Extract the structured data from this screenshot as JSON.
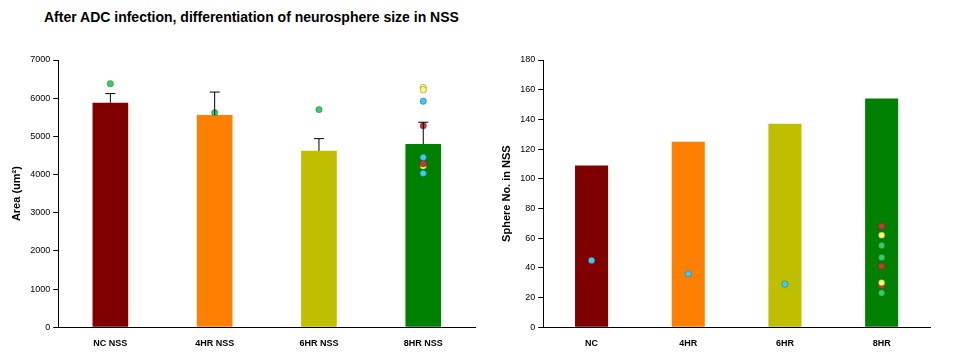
{
  "title": "After ADC infection, differentiation of neurosphere size in NSS",
  "chart_data": [
    {
      "type": "bar",
      "y_label": "Area (um²)",
      "categories": [
        "NC NSS",
        "4HR NSS",
        "6HR NSS",
        "8HR NSS"
      ],
      "values": [
        5880,
        5560,
        4620,
        4800
      ],
      "colors": [
        "#800000",
        "#ff8000",
        "#bfbf00",
        "#008000"
      ],
      "error_bars": [
        240,
        600,
        320,
        570
      ],
      "points": [
        [
          6380,
          5620,
          5700
        ],
        [
          6280,
          6220,
          4220
        ],
        [
          5280,
          4300,
          4280
        ],
        [
          5920,
          4450,
          4030
        ]
      ],
      "point_colors": [
        "#33cc66",
        "#ffff66",
        "#cc3333",
        "#33ccff"
      ],
      "ylim": [
        0,
        7000
      ],
      "yticks": [
        0,
        1000,
        2000,
        3000,
        4000,
        5000,
        6000,
        7000
      ],
      "grid": false
    },
    {
      "type": "bar",
      "y_label": "Sphere No. in NSS",
      "categories": [
        "NC",
        "4HR",
        "6HR",
        "8HR"
      ],
      "values": [
        109,
        125,
        137,
        154
      ],
      "colors": [
        "#800000",
        "#ff8000",
        "#bfbf00",
        "#008000"
      ],
      "points": [
        [
          45,
          36,
          29
        ],
        [
          55,
          47,
          23
        ],
        [
          68,
          41,
          28
        ],
        [
          62,
          30
        ]
      ],
      "point_colors": [
        "#33ccff",
        "#33cc66",
        "#cc3333",
        "#ffff66"
      ],
      "ylim": [
        0,
        180
      ],
      "yticks": [
        0,
        20,
        40,
        60,
        80,
        100,
        120,
        140,
        160,
        180
      ],
      "grid": false
    }
  ]
}
